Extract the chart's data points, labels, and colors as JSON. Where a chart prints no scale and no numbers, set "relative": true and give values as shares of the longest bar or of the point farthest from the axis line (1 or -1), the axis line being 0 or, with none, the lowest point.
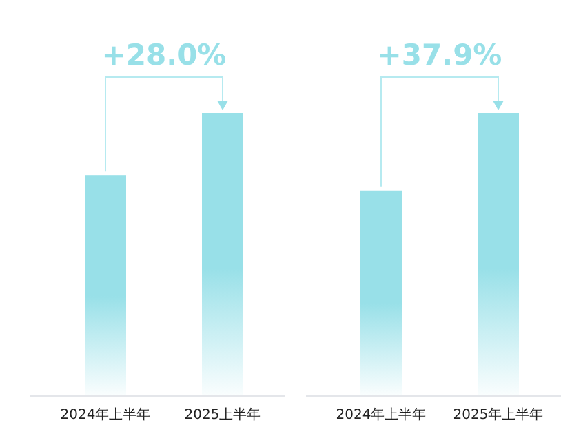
{
  "chart_data": [
    {
      "type": "bar",
      "relative": true,
      "categories": [
        "2024年上半年",
        "2025上半年"
      ],
      "values": [
        0.78,
        1
      ],
      "color": "#98e0e8",
      "annotations": [
        "+28.0%"
      ]
    },
    {
      "type": "bar",
      "relative": true,
      "categories": [
        "2024年上半年",
        "2025年上半年"
      ],
      "values": [
        0.725,
        1
      ],
      "color": "#98e0e8",
      "annotations": [
        "+37.9%"
      ]
    }
  ]
}
